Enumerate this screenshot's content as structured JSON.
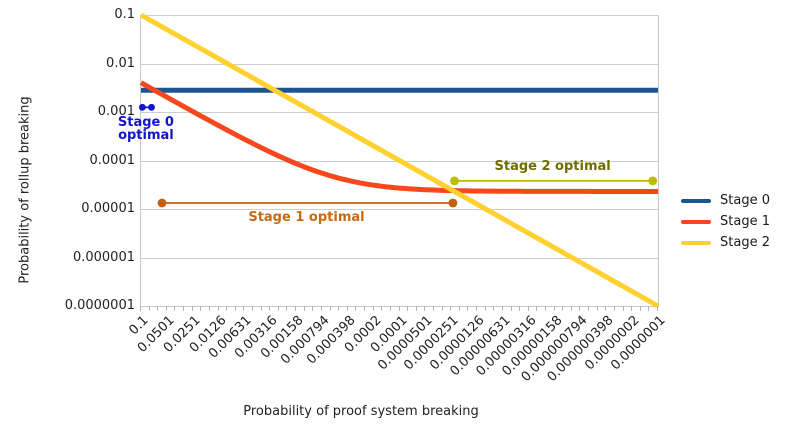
{
  "chart_data": {
    "type": "line",
    "title": "",
    "xlabel": "Probability of proof system breaking",
    "ylabel": "Probability of rollup breaking",
    "x_scale": "log",
    "y_scale": "log",
    "x_range": [
      0.1,
      1e-07
    ],
    "y_range": [
      0.1,
      1e-07
    ],
    "grid": "horizontal-only",
    "legend_position": "right",
    "x_tick_labels": [
      "0.1",
      "0.0501",
      "0.0251",
      "0.0126",
      "0.00631",
      "0.00316",
      "0.00158",
      "0.000794",
      "0.000398",
      "0.0002",
      "0.0001",
      "0.0000501",
      "0.0000251",
      "0.0000126",
      "0.00000631",
      "0.00000316",
      "0.00000158",
      "0.000000794",
      "0.000000398",
      "0.0000002",
      "0.0000001"
    ],
    "y_tick_labels": [
      "0.1",
      "0.01",
      "0.001",
      "0.0001",
      "0.00001",
      "0.000001",
      "0.0000001"
    ],
    "series": [
      {
        "name": "Stage 0",
        "color": "#1E5493",
        "type": "constant",
        "value": 0.0028,
        "key_points": [
          [
            0.1,
            0.0028
          ],
          [
            1e-07,
            0.0028
          ]
        ]
      },
      {
        "name": "Stage 1",
        "color": "#F8471D",
        "type": "formula",
        "slope": 0.04,
        "intercept": 2.3e-05,
        "key_points": [
          [
            0.1,
            0.004
          ],
          [
            0.01,
            0.00042
          ],
          [
            0.001,
            6.3e-05
          ],
          [
            0.0001,
            2.7e-05
          ],
          [
            1e-05,
            2.34e-05
          ],
          [
            1e-06,
            2.31e-05
          ],
          [
            1e-07,
            2.3e-05
          ]
        ]
      },
      {
        "name": "Stage 2",
        "color": "#FFD02E",
        "type": "identity",
        "key_points": [
          [
            0.1,
            0.1
          ],
          [
            1e-07,
            1e-07
          ]
        ]
      }
    ],
    "annotations": [
      {
        "name": "stage-0-optimal",
        "lines": [
          "Stage 0",
          "optimal"
        ],
        "x_from": 0.0965,
        "x_to": 0.0755,
        "y": 0.00125,
        "line_color": "#1414CC",
        "label_color": "#1414CC",
        "label_side": "below",
        "dot_r": 3.4,
        "label_dy": 9
      },
      {
        "name": "stage-1-optimal",
        "lines": [
          "Stage 1 optimal"
        ],
        "x_from": 0.057,
        "x_to": 2.4e-05,
        "y": 1.33e-05,
        "line_color": "#C2600D",
        "label_color": "#C96A11",
        "label_side": "below",
        "dot_r": 4.4,
        "label_dy": 8
      },
      {
        "name": "stage-2-optimal",
        "lines": [
          "Stage 2 optimal"
        ],
        "x_from": 2.3e-05,
        "x_to": 1.15e-07,
        "y": 3.8e-05,
        "line_color": "#BCBC00",
        "label_color": "#6E6E00",
        "label_side": "above",
        "dot_r": 4.4,
        "label_dy": -21
      }
    ]
  }
}
